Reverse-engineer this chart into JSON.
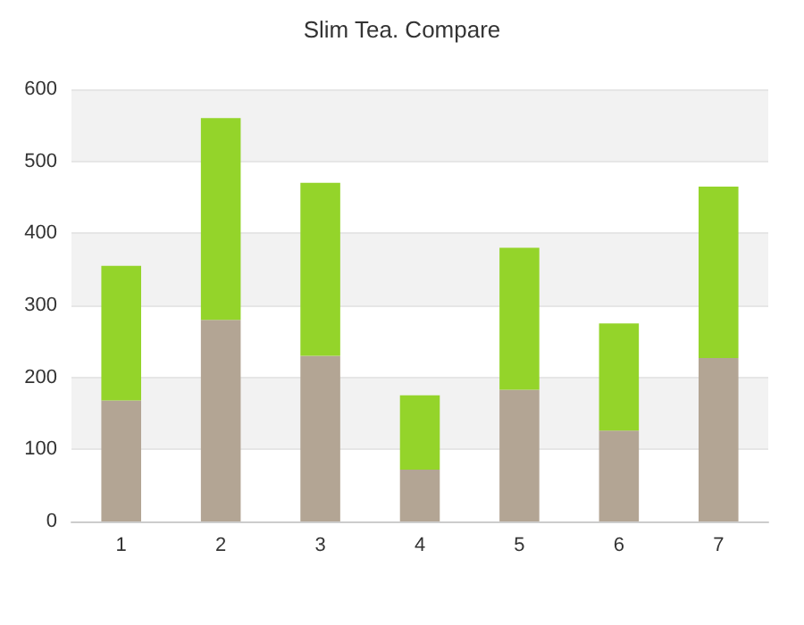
{
  "chart_data": {
    "type": "bar",
    "title": "Slim Tea. Compare",
    "categories": [
      "1",
      "2",
      "3",
      "4",
      "5",
      "6",
      "7"
    ],
    "stacked": true,
    "series": [
      {
        "color": "#b3a594",
        "values": [
          168,
          280,
          230,
          72,
          183,
          126,
          227
        ]
      },
      {
        "color": "#94d42a",
        "values": [
          187,
          280,
          240,
          103,
          197,
          149,
          238
        ]
      }
    ],
    "ylim": [
      0,
      600
    ],
    "yticks": [
      0,
      100,
      200,
      300,
      400,
      500,
      600
    ],
    "grid": "y"
  }
}
